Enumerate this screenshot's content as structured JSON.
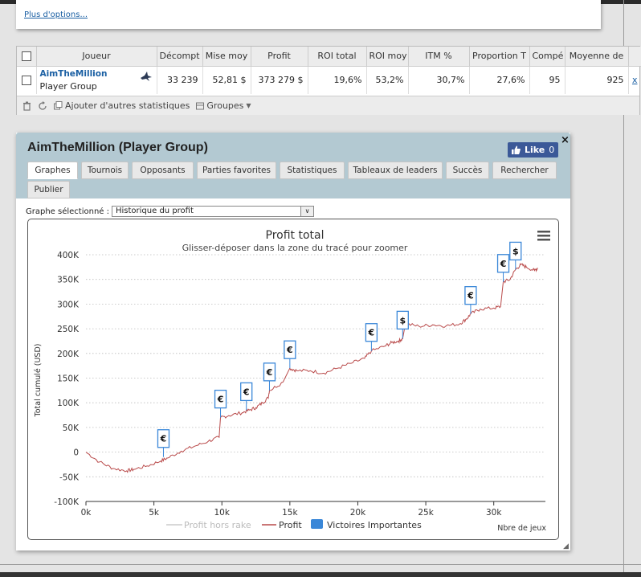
{
  "options": {
    "more_link": "Plus d'options..."
  },
  "table": {
    "headers": [
      "Joueur",
      "Décompt",
      "Mise moy",
      "Profit",
      "ROI total",
      "ROI moy",
      "ITM %",
      "Proportion T",
      "Compé",
      "Moyenne de"
    ],
    "row": {
      "player_name": "AimTheMillion",
      "player_sub": "Player Group",
      "cells": [
        "33 239",
        "52,81 $",
        "373 279 $",
        "19,6%",
        "53,2%",
        "30,7%",
        "27,6%",
        "95",
        "925"
      ],
      "remove": "x"
    },
    "footer": {
      "add_stats": "Ajouter d'autres statistiques",
      "groups": "Groupes"
    }
  },
  "panel": {
    "title": "AimTheMillion (Player Group)",
    "like_label": "Like",
    "like_count": "0",
    "close": "×",
    "tabs": [
      "Graphes",
      "Tournois",
      "Opposants",
      "Parties favorites",
      "Statistiques",
      "Tableaux de leaders",
      "Succès",
      "Rechercher",
      "Publier"
    ],
    "active_tab": "Graphes",
    "graph_select_label": "Graphe sélectionné :",
    "graph_select_value": "Historique du profit"
  },
  "colors": {
    "profit_line": "#b94a4a",
    "no_rake_line": "#cccccc",
    "wins_marker": "#3a87d8",
    "panel_header": "#b3c9d2",
    "like_button": "#3b5998"
  },
  "chart_data": {
    "type": "line",
    "title": "Profit total",
    "subtitle": "Glisser-déposer dans la zone du tracé pour zoomer",
    "ylabel": "Total cumulé (USD)",
    "xlabel": "Nbre de jeux",
    "xlim": [
      0,
      33239
    ],
    "ylim": [
      -100000,
      400000
    ],
    "x_ticks": [
      "0k",
      "5k",
      "10k",
      "15k",
      "20k",
      "25k",
      "30k"
    ],
    "y_ticks": [
      "-100K",
      "-50K",
      "0",
      "50K",
      "100K",
      "150K",
      "200K",
      "250K",
      "300K",
      "350K",
      "400K"
    ],
    "grid": true,
    "legend": [
      "Profit hors rake",
      "Profit",
      "Victoires Importantes"
    ],
    "legend_position": "bottom",
    "series": [
      {
        "name": "Profit",
        "x": [
          0,
          1000,
          2000,
          3000,
          3500,
          4500,
          5500,
          6000,
          7000,
          8000,
          9000,
          9800,
          9900,
          10500,
          11500,
          12000,
          12500,
          13000,
          13400,
          13500,
          14500,
          15000,
          15500,
          16500,
          17500,
          18500,
          19500,
          20500,
          21000,
          22000,
          22500,
          23000,
          23300,
          23500,
          24500,
          25500,
          26500,
          27500,
          28000,
          28300,
          29000,
          30000,
          30500,
          30700,
          31200,
          31600,
          32000,
          32400,
          33000,
          33239
        ],
        "y": [
          0,
          -20000,
          -33000,
          -38000,
          -35000,
          -28000,
          -18000,
          -12000,
          2000,
          12000,
          22000,
          30000,
          70000,
          74000,
          80000,
          85000,
          90000,
          100000,
          110000,
          125000,
          142000,
          170000,
          165000,
          165000,
          160000,
          170000,
          180000,
          190000,
          205000,
          215000,
          222000,
          225000,
          230000,
          260000,
          255000,
          258000,
          256000,
          260000,
          270000,
          280000,
          290000,
          292000,
          295000,
          345000,
          350000,
          370000,
          380000,
          375000,
          368000,
          373279
        ]
      }
    ],
    "big_wins": [
      {
        "x": 5700,
        "y": -10000,
        "currency": "€"
      },
      {
        "x": 9900,
        "y": 70000,
        "currency": "€"
      },
      {
        "x": 11800,
        "y": 85000,
        "currency": "€"
      },
      {
        "x": 13500,
        "y": 125000,
        "currency": "€"
      },
      {
        "x": 15000,
        "y": 170000,
        "currency": "€"
      },
      {
        "x": 21000,
        "y": 205000,
        "currency": "€"
      },
      {
        "x": 23300,
        "y": 230000,
        "currency": "$"
      },
      {
        "x": 28300,
        "y": 280000,
        "currency": "€"
      },
      {
        "x": 30700,
        "y": 345000,
        "currency": "€"
      },
      {
        "x": 31600,
        "y": 370000,
        "currency": "$"
      }
    ]
  }
}
